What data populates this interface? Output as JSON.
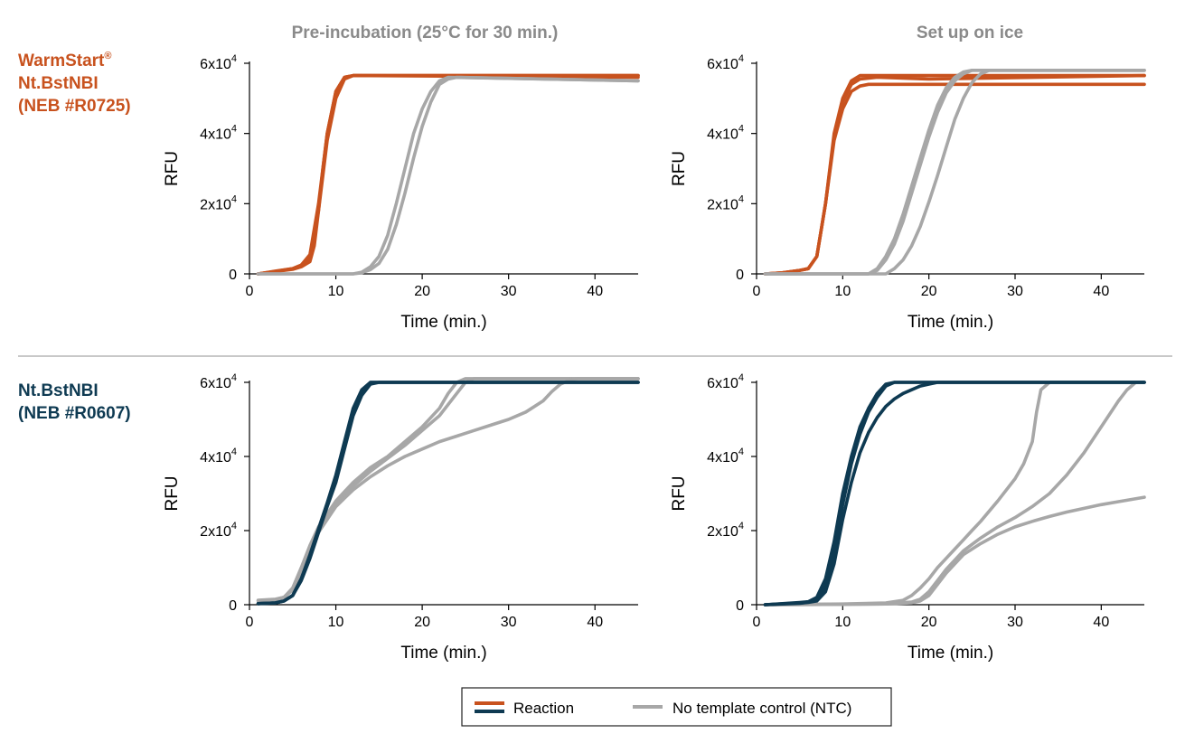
{
  "colors": {
    "warmstart": "#c8521e",
    "ntbstnbi": "#0e3a52",
    "ntc": "#a7a7a7",
    "divider": "#b5b5b5"
  },
  "column_titles": [
    "Pre-incubation (25°C for 30 min.)",
    "Set up on ice"
  ],
  "row_labels": [
    {
      "lines": [
        "WarmStart",
        "Nt.BstNBI",
        "(NEB #R0725)"
      ],
      "superscript": "®",
      "color": "#c8521e"
    },
    {
      "lines": [
        "Nt.BstNBI",
        "(NEB #R0607)"
      ],
      "superscript": "",
      "color": "#0e3a52"
    }
  ],
  "legend": {
    "items": [
      {
        "label": "Reaction",
        "style": "dual-line",
        "colors": [
          "#c8521e",
          "#0e3a52"
        ]
      },
      {
        "label": "No template control (NTC)",
        "style": "line",
        "colors": [
          "#a7a7a7"
        ]
      }
    ]
  },
  "chart_data": [
    {
      "type": "line",
      "row": 0,
      "col": 0,
      "xlabel": "Time (min.)",
      "ylabel": "RFU",
      "xlim": [
        0,
        45
      ],
      "ylim": [
        0,
        60000
      ],
      "xticks": [
        0,
        10,
        20,
        30,
        40
      ],
      "yticks": [
        {
          "value": 0,
          "base": "0",
          "exp": ""
        },
        {
          "value": 20000,
          "base": "2x10",
          "exp": "4"
        },
        {
          "value": 40000,
          "base": "4x10",
          "exp": "4"
        },
        {
          "value": 60000,
          "base": "6x10",
          "exp": "4"
        }
      ],
      "series": [
        {
          "group": "reaction",
          "color": "#c8521e",
          "x": [
            1,
            3,
            5,
            6,
            7,
            8,
            8.5,
            9,
            10,
            11,
            12,
            45
          ],
          "y": [
            0,
            800,
            1500,
            2500,
            4500,
            18000,
            30000,
            40000,
            52000,
            56000,
            56500,
            56500
          ]
        },
        {
          "group": "reaction",
          "color": "#c8521e",
          "x": [
            1,
            3,
            5,
            6,
            7,
            7.5,
            8,
            8.5,
            9,
            10,
            11,
            12,
            45
          ],
          "y": [
            0,
            700,
            1300,
            2000,
            3500,
            8000,
            18000,
            28000,
            38000,
            50000,
            55500,
            56500,
            56500
          ]
        },
        {
          "group": "reaction",
          "color": "#c8521e",
          "x": [
            1,
            3,
            5,
            6,
            7,
            8,
            9,
            10,
            11,
            12,
            45
          ],
          "y": [
            0,
            700,
            1500,
            2500,
            5500,
            20000,
            40000,
            52000,
            56000,
            56500,
            56000
          ]
        },
        {
          "group": "ntc",
          "color": "#a7a7a7",
          "x": [
            1,
            12,
            13,
            14,
            15,
            16,
            17,
            18,
            19,
            20,
            21,
            22,
            23,
            45
          ],
          "y": [
            0,
            0,
            500,
            2000,
            5000,
            11000,
            20000,
            30000,
            40000,
            47000,
            52000,
            55000,
            56000,
            55000
          ]
        },
        {
          "group": "ntc",
          "color": "#a7a7a7",
          "x": [
            1,
            12,
            13,
            14,
            15,
            16,
            17,
            18,
            19,
            20,
            21,
            22,
            23,
            24,
            45
          ],
          "y": [
            0,
            0,
            300,
            1200,
            3000,
            7000,
            14000,
            23000,
            33000,
            42000,
            49000,
            54000,
            55500,
            56000,
            55000
          ]
        }
      ]
    },
    {
      "type": "line",
      "row": 0,
      "col": 1,
      "xlabel": "Time (min.)",
      "ylabel": "RFU",
      "xlim": [
        0,
        45
      ],
      "ylim": [
        0,
        60000
      ],
      "xticks": [
        0,
        10,
        20,
        30,
        40
      ],
      "yticks": [
        {
          "value": 0,
          "base": "0",
          "exp": ""
        },
        {
          "value": 20000,
          "base": "2x10",
          "exp": "4"
        },
        {
          "value": 40000,
          "base": "4x10",
          "exp": "4"
        },
        {
          "value": 60000,
          "base": "6x10",
          "exp": "4"
        }
      ],
      "series": [
        {
          "group": "reaction",
          "color": "#c8521e",
          "x": [
            1,
            3,
            5,
            6,
            7,
            8,
            9,
            10,
            11,
            12,
            45
          ],
          "y": [
            0,
            300,
            1000,
            1500,
            5000,
            20000,
            40000,
            50000,
            55000,
            56500,
            56500
          ]
        },
        {
          "group": "reaction",
          "color": "#c8521e",
          "x": [
            1,
            3,
            5,
            6,
            7,
            8,
            9,
            10,
            11,
            12,
            13,
            45
          ],
          "y": [
            0,
            300,
            1000,
            1500,
            5000,
            20000,
            38000,
            47000,
            52000,
            53500,
            54000,
            54000
          ]
        },
        {
          "group": "reaction",
          "color": "#c8521e",
          "x": [
            1,
            3,
            5,
            6,
            7,
            8,
            9,
            10,
            11,
            12,
            14,
            20,
            45
          ],
          "y": [
            0,
            300,
            1000,
            1500,
            5000,
            20000,
            39000,
            49000,
            54000,
            55500,
            56000,
            55500,
            56500
          ]
        },
        {
          "group": "ntc",
          "color": "#a7a7a7",
          "x": [
            1,
            13,
            14,
            15,
            16,
            17,
            18,
            19,
            20,
            21,
            22,
            23,
            24,
            25,
            45
          ],
          "y": [
            0,
            0,
            1500,
            5000,
            10000,
            17000,
            25000,
            33000,
            41000,
            48000,
            53000,
            56000,
            57500,
            58000,
            58000
          ]
        },
        {
          "group": "ntc",
          "color": "#a7a7a7",
          "x": [
            1,
            13,
            14,
            15,
            16,
            17,
            18,
            19,
            20,
            21,
            22,
            23,
            24,
            25,
            45
          ],
          "y": [
            0,
            0,
            1000,
            4000,
            8500,
            15000,
            23000,
            31000,
            39000,
            46000,
            51500,
            55000,
            57000,
            58000,
            58000
          ]
        },
        {
          "group": "ntc",
          "color": "#a7a7a7",
          "x": [
            1,
            15,
            16,
            17,
            18,
            19,
            20,
            21,
            22,
            23,
            24,
            25,
            26,
            27,
            45
          ],
          "y": [
            0,
            0,
            1500,
            4000,
            8000,
            13500,
            20500,
            28000,
            36000,
            44000,
            50000,
            54500,
            57000,
            58000,
            58000
          ]
        }
      ]
    },
    {
      "type": "line",
      "row": 1,
      "col": 0,
      "xlabel": "Time (min.)",
      "ylabel": "RFU",
      "xlim": [
        0,
        45
      ],
      "ylim": [
        0,
        60000
      ],
      "xticks": [
        0,
        10,
        20,
        30,
        40
      ],
      "yticks": [
        {
          "value": 0,
          "base": "0",
          "exp": ""
        },
        {
          "value": 20000,
          "base": "2x10",
          "exp": "4"
        },
        {
          "value": 40000,
          "base": "4x10",
          "exp": "4"
        },
        {
          "value": 60000,
          "base": "6x10",
          "exp": "4"
        }
      ],
      "series": [
        {
          "group": "ntc",
          "color": "#a7a7a7",
          "x": [
            1,
            3,
            4,
            5,
            6,
            7,
            8,
            10,
            12,
            14,
            16,
            18,
            20,
            22,
            23,
            24,
            25,
            26,
            45
          ],
          "y": [
            1200,
            1500,
            2000,
            4500,
            10000,
            16000,
            21000,
            28000,
            33000,
            37000,
            40000,
            44000,
            48000,
            53000,
            57000,
            60000,
            61000,
            61000,
            61000
          ]
        },
        {
          "group": "ntc",
          "color": "#a7a7a7",
          "x": [
            1,
            3,
            4,
            5,
            6,
            7,
            8,
            10,
            12,
            14,
            16,
            18,
            20,
            22,
            24,
            25,
            26,
            45
          ],
          "y": [
            1000,
            1300,
            2000,
            4000,
            9000,
            15000,
            20000,
            27000,
            32000,
            36000,
            39500,
            43000,
            47000,
            51000,
            57000,
            60000,
            61000,
            61000
          ]
        },
        {
          "group": "ntc",
          "color": "#a7a7a7",
          "x": [
            1,
            3,
            4,
            5,
            6,
            7,
            8,
            10,
            12,
            14,
            16,
            18,
            20,
            22,
            24,
            26,
            28,
            30,
            32,
            34,
            35,
            36,
            37,
            38,
            39,
            45
          ],
          "y": [
            1100,
            1400,
            2000,
            4000,
            9000,
            15000,
            19500,
            26500,
            31000,
            34500,
            37500,
            40000,
            42000,
            44000,
            45500,
            47000,
            48500,
            50000,
            52000,
            55000,
            57500,
            59500,
            60500,
            61000,
            61000,
            61000
          ]
        },
        {
          "group": "reaction",
          "color": "#0e3a52",
          "x": [
            1,
            3,
            4,
            5,
            6,
            7,
            8,
            9,
            10,
            11,
            12,
            13,
            14,
            15,
            16,
            45
          ],
          "y": [
            300,
            500,
            1000,
            2500,
            7000,
            13000,
            20000,
            27000,
            34000,
            43000,
            52000,
            57500,
            60000,
            60000,
            60000,
            60000
          ]
        },
        {
          "group": "reaction",
          "color": "#0e3a52",
          "x": [
            1,
            3,
            4,
            5,
            6,
            7,
            8,
            9,
            10,
            11,
            12,
            13,
            14,
            15,
            45
          ],
          "y": [
            300,
            500,
            1000,
            2500,
            7000,
            13500,
            20500,
            27500,
            35000,
            44000,
            53000,
            58000,
            60000,
            60000,
            60000
          ]
        },
        {
          "group": "reaction",
          "color": "#0e3a52",
          "x": [
            1,
            3,
            4,
            5,
            6,
            7,
            8,
            9,
            10,
            11,
            12,
            13,
            14,
            15,
            16,
            45
          ],
          "y": [
            300,
            500,
            1000,
            2500,
            6500,
            12500,
            19500,
            26500,
            33000,
            42000,
            51000,
            56500,
            59500,
            60000,
            60000,
            60000
          ]
        }
      ]
    },
    {
      "type": "line",
      "row": 1,
      "col": 1,
      "xlabel": "Time (min.)",
      "ylabel": "RFU",
      "xlim": [
        0,
        45
      ],
      "ylim": [
        0,
        60000
      ],
      "xticks": [
        0,
        10,
        20,
        30,
        40
      ],
      "yticks": [
        {
          "value": 0,
          "base": "0",
          "exp": ""
        },
        {
          "value": 20000,
          "base": "2x10",
          "exp": "4"
        },
        {
          "value": 40000,
          "base": "4x10",
          "exp": "4"
        },
        {
          "value": 60000,
          "base": "6x10",
          "exp": "4"
        }
      ],
      "series": [
        {
          "group": "ntc",
          "color": "#a7a7a7",
          "x": [
            1,
            10,
            15,
            17,
            18,
            19,
            20,
            21,
            22,
            23,
            24,
            25,
            26,
            28,
            30,
            31,
            32,
            32.5,
            33,
            34,
            45
          ],
          "y": [
            0,
            200,
            500,
            1200,
            2500,
            4500,
            7000,
            10000,
            12500,
            15000,
            17500,
            20000,
            22500,
            28000,
            34000,
            38000,
            44000,
            52000,
            58000,
            60000,
            60000
          ]
        },
        {
          "group": "ntc",
          "color": "#a7a7a7",
          "x": [
            1,
            10,
            15,
            18,
            19,
            20,
            21,
            22,
            24,
            26,
            28,
            30,
            32,
            34,
            36,
            38,
            40,
            42,
            43,
            44,
            45
          ],
          "y": [
            0,
            100,
            200,
            700,
            1500,
            3500,
            6500,
            9500,
            14500,
            18000,
            21000,
            23500,
            26500,
            30000,
            35000,
            41000,
            48000,
            55000,
            58000,
            60000,
            60000
          ]
        },
        {
          "group": "ntc",
          "color": "#a7a7a7",
          "x": [
            1,
            10,
            15,
            18,
            19,
            20,
            21,
            22,
            24,
            26,
            28,
            30,
            32,
            34,
            36,
            38,
            40,
            42,
            45
          ],
          "y": [
            0,
            100,
            200,
            500,
            1000,
            2500,
            5500,
            8500,
            13500,
            16500,
            19000,
            21000,
            22500,
            23800,
            25000,
            26000,
            27000,
            27800,
            29000
          ]
        },
        {
          "group": "reaction",
          "color": "#0e3a52",
          "x": [
            1,
            5,
            6,
            7,
            8,
            9,
            10,
            11,
            12,
            13,
            14,
            15,
            16,
            17,
            45
          ],
          "y": [
            0,
            600,
            800,
            2000,
            7000,
            17000,
            30000,
            40000,
            48000,
            53000,
            57000,
            59500,
            60000,
            60000,
            60000
          ]
        },
        {
          "group": "reaction",
          "color": "#0e3a52",
          "x": [
            1,
            5,
            6,
            7,
            8,
            9,
            10,
            11,
            12,
            13,
            14,
            15,
            16,
            17,
            45
          ],
          "y": [
            0,
            500,
            700,
            1500,
            5000,
            14000,
            27000,
            38000,
            46000,
            52000,
            56000,
            59000,
            60000,
            60000,
            60000
          ]
        },
        {
          "group": "reaction",
          "color": "#0e3a52",
          "x": [
            1,
            5,
            6,
            7,
            8,
            9,
            10,
            11,
            12,
            13,
            14,
            15,
            16,
            17,
            18,
            19,
            20,
            21,
            22,
            45
          ],
          "y": [
            0,
            400,
            600,
            1000,
            3500,
            11000,
            23000,
            33000,
            41000,
            46500,
            50500,
            53500,
            55500,
            57000,
            58000,
            59000,
            59500,
            60000,
            60000,
            60000
          ]
        }
      ]
    }
  ]
}
